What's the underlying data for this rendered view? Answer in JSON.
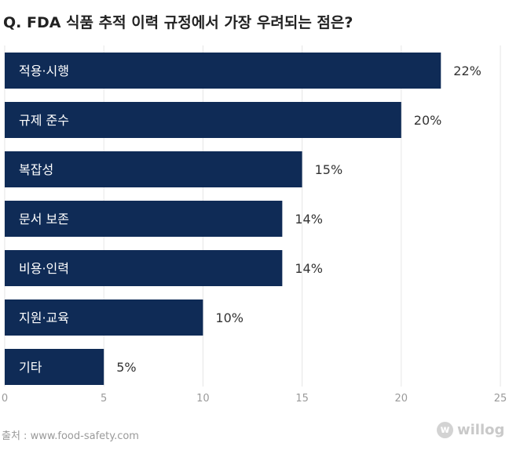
{
  "chart_data": {
    "type": "bar",
    "orientation": "horizontal",
    "title": "Q. FDA 식품 추적 이력 규정에서 가장 우려되는 점은?",
    "categories": [
      "적용·시행",
      "규제 준수",
      "복잡성",
      "문서 보존",
      "비용·인력",
      "지원·교육",
      "기타"
    ],
    "values": [
      22,
      20,
      15,
      14,
      14,
      10,
      5
    ],
    "value_labels": [
      "22%",
      "20%",
      "15%",
      "14%",
      "14%",
      "10%",
      "5%"
    ],
    "xlim": [
      0,
      25
    ],
    "xticks": [
      0,
      5,
      10,
      15,
      20,
      25
    ],
    "xtick_labels": [
      "0",
      "5",
      "10",
      "15",
      "20",
      "25"
    ],
    "grid": "vertical",
    "bar_color": "#0f2b56",
    "category_label_color": "#ffffff",
    "source": "출처 : www.food-safety.com",
    "watermark": "willog",
    "watermark_mark": "w"
  }
}
